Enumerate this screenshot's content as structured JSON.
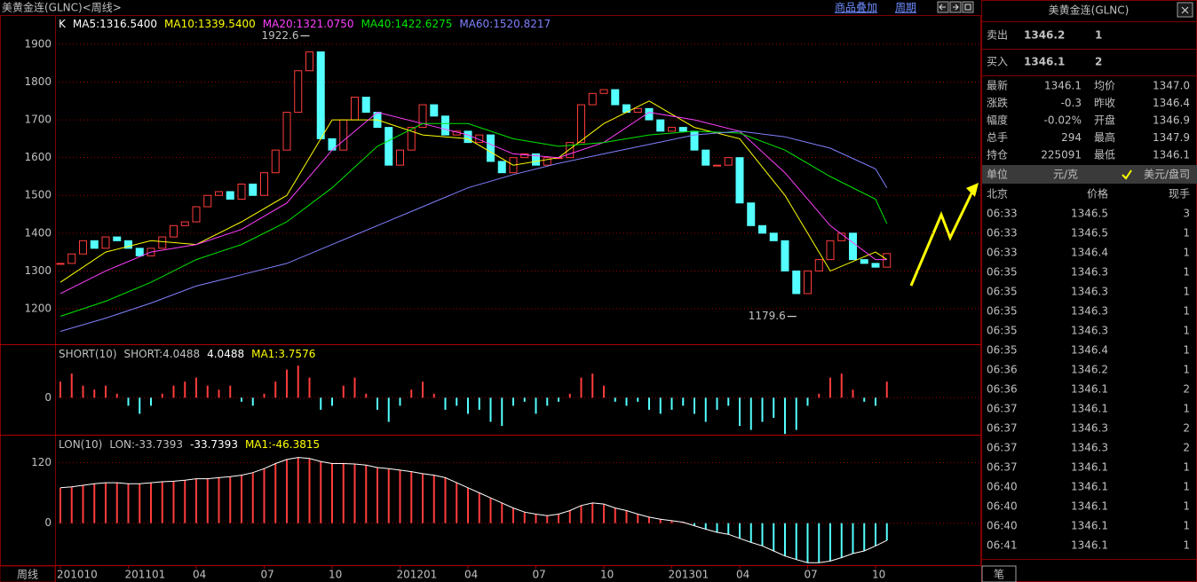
{
  "window": {
    "title": "美黄金连(GLNC)<周线>",
    "menu": [
      "商品叠加",
      "周期"
    ],
    "period_tab": "周线"
  },
  "chart_data": [
    {
      "type": "candlestick",
      "label": "K",
      "legend": [
        {
          "text": "MA5:1316.5400",
          "color": "#ffffff"
        },
        {
          "text": "MA10:1339.5400",
          "color": "#ffff00"
        },
        {
          "text": "MA20:1321.0750",
          "color": "#ff40ff"
        },
        {
          "text": "MA40:1422.6275",
          "color": "#00e600"
        },
        {
          "text": "MA60:1520.8217",
          "color": "#8080ff"
        }
      ],
      "values": [
        1320,
        1345,
        1380,
        1360,
        1390,
        1380,
        1360,
        1340,
        1360,
        1390,
        1420,
        1430,
        1470,
        1500,
        1510,
        1490,
        1530,
        1500,
        1560,
        1620,
        1720,
        1830,
        1880,
        1650,
        1620,
        1700,
        1760,
        1720,
        1680,
        1580,
        1620,
        1680,
        1740,
        1710,
        1660,
        1670,
        1640,
        1660,
        1590,
        1560,
        1600,
        1610,
        1580,
        1600,
        1600,
        1640,
        1740,
        1770,
        1780,
        1740,
        1720,
        1730,
        1700,
        1670,
        1680,
        1670,
        1620,
        1580,
        1580,
        1600,
        1480,
        1420,
        1400,
        1380,
        1300,
        1240,
        1300,
        1330,
        1380,
        1400,
        1330,
        1320,
        1310,
        1346
      ],
      "up_color": "#ff3c3c",
      "down_color": "#54ffff",
      "series": [
        {
          "name": "MA10",
          "color": "#ffff00",
          "x": [
            0,
            4,
            8,
            12,
            16,
            20,
            24,
            28,
            32,
            36,
            40,
            44,
            48,
            52,
            56,
            60,
            64,
            68,
            72,
            73
          ],
          "values": [
            1270,
            1350,
            1380,
            1370,
            1430,
            1500,
            1700,
            1700,
            1660,
            1650,
            1580,
            1600,
            1690,
            1750,
            1680,
            1650,
            1500,
            1300,
            1350,
            1330
          ]
        },
        {
          "name": "MA20",
          "color": "#ff40ff",
          "x": [
            0,
            4,
            8,
            12,
            16,
            20,
            24,
            28,
            32,
            36,
            40,
            44,
            48,
            52,
            56,
            60,
            64,
            68,
            72,
            73
          ],
          "values": [
            1240,
            1300,
            1350,
            1370,
            1410,
            1480,
            1620,
            1720,
            1690,
            1660,
            1610,
            1600,
            1640,
            1720,
            1700,
            1670,
            1560,
            1420,
            1330,
            1330
          ]
        },
        {
          "name": "MA40",
          "color": "#00e600",
          "x": [
            0,
            4,
            8,
            12,
            16,
            20,
            24,
            28,
            32,
            36,
            40,
            44,
            48,
            52,
            56,
            60,
            64,
            68,
            72,
            73
          ],
          "values": [
            1180,
            1220,
            1270,
            1330,
            1370,
            1430,
            1520,
            1630,
            1690,
            1690,
            1650,
            1630,
            1640,
            1660,
            1670,
            1665,
            1620,
            1550,
            1490,
            1425
          ]
        },
        {
          "name": "MA60",
          "color": "#8080ff",
          "x": [
            0,
            4,
            8,
            12,
            16,
            20,
            24,
            28,
            32,
            36,
            40,
            44,
            48,
            52,
            56,
            60,
            64,
            68,
            72,
            73
          ],
          "values": [
            1140,
            1175,
            1215,
            1260,
            1290,
            1320,
            1370,
            1420,
            1470,
            1520,
            1555,
            1585,
            1610,
            1635,
            1660,
            1670,
            1655,
            1625,
            1570,
            1520
          ]
        }
      ],
      "high": 1922.6,
      "low": 1179.6,
      "ylim": [
        1106,
        1975
      ],
      "yticks": [
        1200,
        1300,
        1400,
        1500,
        1600,
        1700,
        1800,
        1900
      ],
      "xticks": [
        {
          "value": 0,
          "label": "201010"
        },
        {
          "value": 6,
          "label": "201101"
        },
        {
          "value": 12,
          "label": "04"
        },
        {
          "value": 18,
          "label": "07"
        },
        {
          "value": 24,
          "label": "10"
        },
        {
          "value": 30,
          "label": "201201"
        },
        {
          "value": 36,
          "label": "04"
        },
        {
          "value": 42,
          "label": "07"
        },
        {
          "value": 48,
          "label": "10"
        },
        {
          "value": 54,
          "label": "201301"
        },
        {
          "value": 60,
          "label": "04"
        },
        {
          "value": 66,
          "label": "07"
        },
        {
          "value": 72,
          "label": "10"
        }
      ],
      "grid": true
    },
    {
      "type": "histogram",
      "legend": [
        {
          "text": "SHORT(10)",
          "color": "#c0c0c0"
        },
        {
          "text": "SHORT:4.0488",
          "color": "#c0c0c0"
        },
        {
          "text": "4.0488",
          "color": "#ffffff"
        },
        {
          "text": "MA1:3.7576",
          "color": "#ffff00"
        }
      ],
      "values": [
        4,
        6,
        3,
        2,
        3,
        1,
        -2,
        -4,
        -2,
        1,
        3,
        4,
        5,
        3,
        2,
        3,
        -1,
        -2,
        1,
        4,
        7,
        8,
        5,
        -3,
        -2,
        3,
        5,
        1,
        -3,
        -6,
        -2,
        2,
        4,
        1,
        -3,
        -2,
        -4,
        -3,
        -6,
        -7,
        -2,
        -1,
        -4,
        -2,
        -1,
        1,
        5,
        6,
        3,
        -1,
        -2,
        -1,
        -3,
        -4,
        -3,
        -2,
        -4,
        -6,
        -3,
        -2,
        -7,
        -8,
        -6,
        -5,
        -9,
        -8,
        -2,
        1,
        5,
        6,
        2,
        -1,
        -2,
        4
      ],
      "up_color": "#ff3c3c",
      "down_color": "#54ffff",
      "ylim": [
        -9.2,
        13.3
      ],
      "yticks": [
        0
      ]
    },
    {
      "type": "histogram",
      "legend": [
        {
          "text": "LON(10)",
          "color": "#c0c0c0"
        },
        {
          "text": "LON:-33.7393",
          "color": "#c0c0c0"
        },
        {
          "text": "-33.7393",
          "color": "#ffffff"
        },
        {
          "text": "MA1:-46.3815",
          "color": "#ffff00"
        }
      ],
      "values": [
        70,
        72,
        75,
        78,
        80,
        80,
        78,
        78,
        80,
        82,
        83,
        85,
        88,
        88,
        90,
        92,
        95,
        100,
        108,
        118,
        126,
        130,
        128,
        122,
        118,
        118,
        117,
        115,
        110,
        108,
        105,
        102,
        98,
        95,
        90,
        80,
        70,
        60,
        50,
        40,
        30,
        22,
        18,
        15,
        18,
        25,
        35,
        40,
        38,
        30,
        25,
        18,
        12,
        8,
        5,
        2,
        -5,
        -12,
        -18,
        -22,
        -30,
        -38,
        -45,
        -55,
        -65,
        -72,
        -78,
        -78,
        -75,
        -68,
        -60,
        -55,
        -45,
        -34
      ],
      "up_color": "#ff3c3c",
      "down_color": "#54ffff",
      "line_color": "#ffffff",
      "ylim": [
        -83,
        175
      ],
      "yticks": [
        0,
        120
      ]
    }
  ],
  "quote": {
    "title": "美黄金连(GLNC)",
    "sell": {
      "label": "卖出",
      "price": "1346.2",
      "qty": "1"
    },
    "buy": {
      "label": "买入",
      "price": "1346.1",
      "qty": "2"
    },
    "stats": [
      {
        "cells": [
          "最新",
          "1346.1",
          "均价",
          "1347.0"
        ],
        "colors": [
          "#c0c0c0",
          "#00e600",
          "#c0c0c0",
          "#ff5050"
        ]
      },
      {
        "cells": [
          "涨跌",
          "-0.3",
          "昨收",
          "1346.4"
        ],
        "colors": [
          "#c0c0c0",
          "#00e600",
          "#c0c0c0",
          "#ffffff"
        ]
      },
      {
        "cells": [
          "幅度",
          "-0.02%",
          "开盘",
          "1346.9"
        ],
        "colors": [
          "#c0c0c0",
          "#00e600",
          "#c0c0c0",
          "#ff5050"
        ]
      },
      {
        "cells": [
          "总手",
          "294",
          "最高",
          "1347.9"
        ],
        "colors": [
          "#c0c0c0",
          "#ffff00",
          "#c0c0c0",
          "#ff5050"
        ]
      },
      {
        "cells": [
          "持仓",
          "225091",
          "最低",
          "1346.1"
        ],
        "colors": [
          "#c0c0c0",
          "#ffff00",
          "#c0c0c0",
          "#00e600"
        ]
      }
    ],
    "unit": [
      "单位",
      "元/克",
      "美元/盘司"
    ],
    "trades_header": [
      "北京",
      "价格",
      "现手"
    ],
    "trades": [
      {
        "cells": [
          "06:33",
          "1346.5",
          "3"
        ],
        "colors": [
          "#ff5050",
          "#ff5050"
        ]
      },
      {
        "cells": [
          "06:33",
          "1346.5",
          "1"
        ],
        "colors": [
          "#ff5050",
          "#00e600"
        ]
      },
      {
        "cells": [
          "06:33",
          "1346.4",
          "1"
        ],
        "colors": [
          "#ffffff",
          "#00e600"
        ]
      },
      {
        "cells": [
          "06:35",
          "1346.3",
          "1"
        ],
        "colors": [
          "#00e600",
          "#00e600"
        ]
      },
      {
        "cells": [
          "06:35",
          "1346.3",
          "1"
        ],
        "colors": [
          "#00e600",
          "#00e600"
        ]
      },
      {
        "cells": [
          "06:35",
          "1346.3",
          "1"
        ],
        "colors": [
          "#00e600",
          "#00e600"
        ]
      },
      {
        "cells": [
          "06:35",
          "1346.3",
          "1"
        ],
        "colors": [
          "#00e600",
          "#00e600"
        ]
      },
      {
        "cells": [
          "06:35",
          "1346.4",
          "1"
        ],
        "colors": [
          "#ffffff",
          "#ff5050"
        ]
      },
      {
        "cells": [
          "06:36",
          "1346.2",
          "1"
        ],
        "colors": [
          "#00e600",
          "#00e600"
        ]
      },
      {
        "cells": [
          "06:36",
          "1346.1",
          "2"
        ],
        "colors": [
          "#00e600",
          "#00e600"
        ]
      },
      {
        "cells": [
          "06:37",
          "1346.1",
          "1"
        ],
        "colors": [
          "#00e600",
          "#00e600"
        ]
      },
      {
        "cells": [
          "06:37",
          "1346.3",
          "2"
        ],
        "colors": [
          "#00e600",
          "#ff5050"
        ]
      },
      {
        "cells": [
          "06:37",
          "1346.3",
          "2"
        ],
        "colors": [
          "#00e600",
          "#ff5050"
        ]
      },
      {
        "cells": [
          "06:37",
          "1346.1",
          "1"
        ],
        "colors": [
          "#00e600",
          "#00e600"
        ]
      },
      {
        "cells": [
          "06:40",
          "1346.1",
          "1"
        ],
        "colors": [
          "#00e600",
          "#00e600"
        ]
      },
      {
        "cells": [
          "06:40",
          "1346.1",
          "1"
        ],
        "colors": [
          "#00e600",
          "#00e600"
        ]
      },
      {
        "cells": [
          "06:40",
          "1346.1",
          "1"
        ],
        "colors": [
          "#00e600",
          "#00e600"
        ]
      },
      {
        "cells": [
          "06:41",
          "1346.1",
          "1"
        ],
        "colors": [
          "#00e600",
          "#00e600"
        ]
      }
    ],
    "tab": "笔"
  }
}
